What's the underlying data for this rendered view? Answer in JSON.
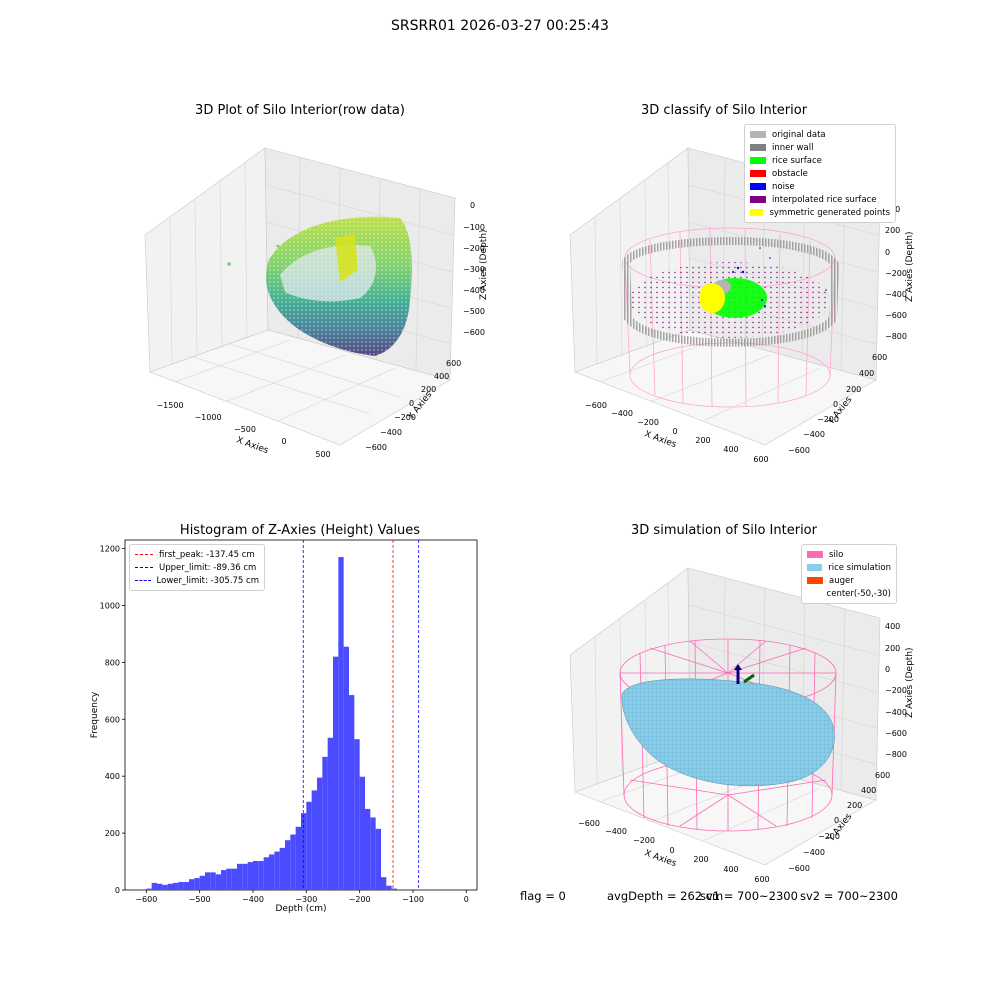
{
  "suptitle": "SRSRR01 2026-03-27 00:25:43",
  "plot1": {
    "title": "3D Plot of Silo Interior(row data)",
    "xlabel": "X Axies",
    "ylabel": "Y Axies",
    "zlabel": "Z Axies (Depth)",
    "xticks": [
      "−1500",
      "−1000",
      "−500",
      "0",
      "500"
    ],
    "yticks": [
      "600",
      "400",
      "200",
      "0",
      "−200",
      "−400",
      "−600"
    ],
    "zticks": [
      "0",
      "−100",
      "−200",
      "−300",
      "−400",
      "−500",
      "−600"
    ]
  },
  "plot2": {
    "title": "3D classify of Silo Interior",
    "xlabel": "X Axies",
    "ylabel": "Y Axies",
    "zlabel": "Z Axies (Depth)",
    "xticks": [
      "−600",
      "−400",
      "−200",
      "0",
      "200",
      "400",
      "600"
    ],
    "yticks": [
      "600",
      "400",
      "200",
      "0",
      "−200",
      "−400",
      "−600"
    ],
    "zticks": [
      "400",
      "200",
      "0",
      "−200",
      "−400",
      "−600",
      "−800"
    ],
    "legend": [
      {
        "label": "original data",
        "color": "#b4b4b4"
      },
      {
        "label": "inner wall",
        "color": "#808080"
      },
      {
        "label": "rice surface",
        "color": "#00ff00"
      },
      {
        "label": "obstacle",
        "color": "#ff0000"
      },
      {
        "label": "noise",
        "color": "#0000ff"
      },
      {
        "label": "interpolated rice surface",
        "color": "#800080"
      },
      {
        "label": "symmetric generated points",
        "color": "#ffff00"
      }
    ]
  },
  "plot4": {
    "title": "3D simulation of Silo Interior",
    "xlabel": "X Axies",
    "ylabel": "Y Axies",
    "zlabel": "Z Axies (Depth)",
    "xticks": [
      "−600",
      "−400",
      "−200",
      "0",
      "200",
      "400",
      "600"
    ],
    "yticks": [
      "600",
      "400",
      "200",
      "0",
      "−200",
      "−400",
      "−600"
    ],
    "zticks": [
      "400",
      "200",
      "0",
      "−200",
      "−400",
      "−600",
      "−800"
    ],
    "legend": [
      {
        "label": "silo",
        "color": "#ff69b4"
      },
      {
        "label": "rice simulation",
        "color": "#87ceeb"
      },
      {
        "label": "auger",
        "color": "#ff4500"
      },
      {
        "label": "center(-50,-30)",
        "color": ""
      }
    ]
  },
  "footer": {
    "flag": "flag = 0",
    "avg": "avgDepth = 262 cm",
    "sv1": "sv1 = 700~2300",
    "sv2": "sv2 = 700~2300"
  },
  "chart_data": {
    "type": "bar",
    "title": "Histogram of Z-Axies (Height) Values",
    "xlabel": "Depth (cm)",
    "ylabel": "Frequency",
    "xlim": [
      -640,
      20
    ],
    "ylim": [
      0,
      1230
    ],
    "xticks": [
      -600,
      -500,
      -400,
      -300,
      -200,
      -100,
      0
    ],
    "yticks": [
      0,
      200,
      400,
      600,
      800,
      1000,
      1200
    ],
    "bin_start": -600,
    "bin_width": 10,
    "values": [
      5,
      25,
      22,
      18,
      22,
      25,
      28,
      28,
      38,
      42,
      50,
      62,
      62,
      55,
      70,
      75,
      75,
      92,
      92,
      98,
      102,
      102,
      115,
      125,
      135,
      148,
      175,
      195,
      222,
      270,
      310,
      350,
      395,
      468,
      535,
      820,
      1170,
      855,
      685,
      530,
      398,
      285,
      255,
      215,
      45,
      15,
      5
    ],
    "color": "#4b4bff",
    "lines": [
      {
        "label": "first_peak: -137.45 cm",
        "x": -137.45,
        "color": "#ff0000"
      },
      {
        "label": "Upper_limit: -89.36 cm",
        "x": -89.36,
        "color": "#0000ff"
      },
      {
        "label": "Lower_limit: -305.75 cm",
        "x": -305.75,
        "color": "#0000ff"
      }
    ]
  }
}
